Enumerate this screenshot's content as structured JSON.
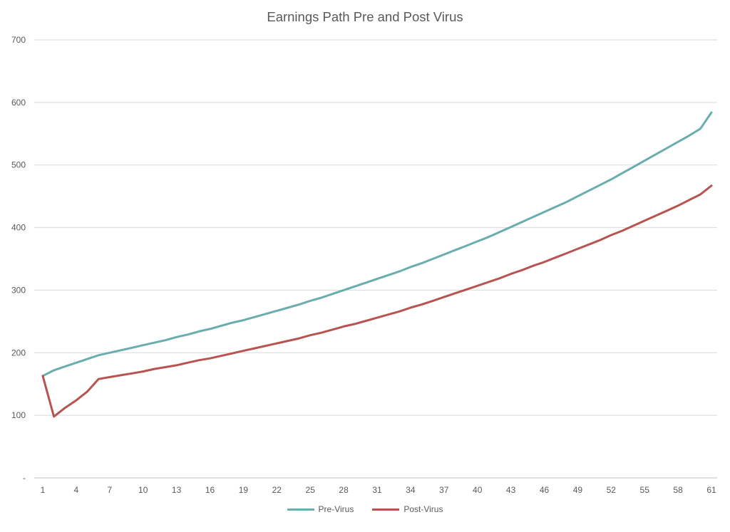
{
  "title": "Earnings Path Pre and Post Virus",
  "chart_data": {
    "type": "line",
    "title": "Earnings Path Pre and Post Virus",
    "xlabel": "",
    "ylabel": "",
    "ylim": [
      0,
      700
    ],
    "yticks": [
      0,
      100,
      200,
      300,
      400,
      500,
      600,
      700
    ],
    "ytick_labels": [
      "-",
      "100",
      "200",
      "300",
      "400",
      "500",
      "600",
      "700"
    ],
    "x": [
      1,
      2,
      3,
      4,
      5,
      6,
      7,
      8,
      9,
      10,
      11,
      12,
      13,
      14,
      15,
      16,
      17,
      18,
      19,
      20,
      21,
      22,
      23,
      24,
      25,
      26,
      27,
      28,
      29,
      30,
      31,
      32,
      33,
      34,
      35,
      36,
      37,
      38,
      39,
      40,
      41,
      42,
      43,
      44,
      45,
      46,
      47,
      48,
      49,
      50,
      51,
      52,
      53,
      54,
      55,
      56,
      57,
      58,
      59,
      60,
      61
    ],
    "xtick_labels": [
      "1",
      "4",
      "7",
      "10",
      "13",
      "16",
      "19",
      "22",
      "25",
      "28",
      "31",
      "34",
      "37",
      "40",
      "43",
      "46",
      "49",
      "52",
      "55",
      "58",
      "61"
    ],
    "grid": true,
    "legend_position": "bottom",
    "series": [
      {
        "name": "Pre-Virus",
        "color": "#6aadaf",
        "values": [
          163,
          172,
          178,
          184,
          190,
          196,
          200,
          204,
          208,
          212,
          216,
          220,
          225,
          229,
          234,
          238,
          243,
          248,
          252,
          257,
          262,
          267,
          272,
          277,
          283,
          288,
          294,
          300,
          306,
          312,
          318,
          324,
          330,
          337,
          343,
          350,
          357,
          364,
          371,
          378,
          385,
          393,
          401,
          409,
          417,
          425,
          433,
          441,
          450,
          459,
          468,
          477,
          487,
          497,
          507,
          517,
          527,
          537,
          547,
          558,
          584
        ]
      },
      {
        "name": "Post-Virus",
        "color": "#b85450",
        "values": [
          163,
          98,
          112,
          124,
          138,
          158,
          161,
          164,
          167,
          170,
          174,
          177,
          180,
          184,
          188,
          191,
          195,
          199,
          203,
          207,
          211,
          215,
          219,
          223,
          228,
          232,
          237,
          242,
          246,
          251,
          256,
          261,
          266,
          272,
          277,
          283,
          289,
          295,
          301,
          307,
          313,
          319,
          326,
          332,
          339,
          345,
          352,
          359,
          366,
          373,
          380,
          388,
          395,
          403,
          411,
          419,
          427,
          435,
          444,
          453,
          467
        ]
      }
    ]
  }
}
